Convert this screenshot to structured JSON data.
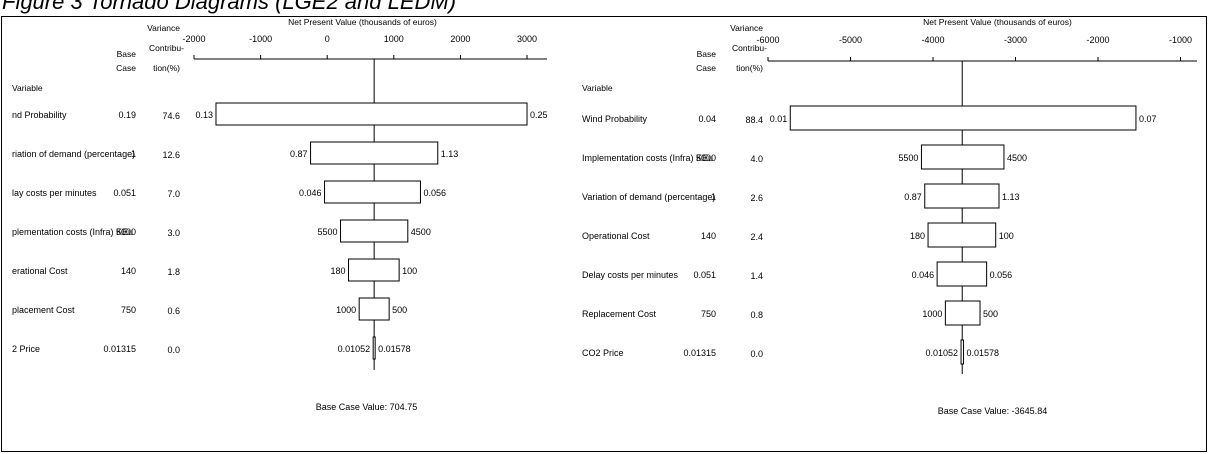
{
  "figure": {
    "title": "Figure 3 Tornado Diagrams (LGE2 and LEDM)"
  },
  "table_headers": {
    "variable": "Variable",
    "base_case_line1": "Base",
    "base_case_line2": "Case",
    "variance_line1": "Variance",
    "variance_line2": "Contribu-",
    "variance_line3": "tion(%)"
  },
  "chart_data": [
    {
      "type": "bar",
      "subtype": "tornado",
      "axis_title": "Net Present Value (thousands of euros)",
      "xlim": [
        -2000,
        3300
      ],
      "ticks": [
        -2000,
        -1000,
        0,
        1000,
        2000,
        3000
      ],
      "base_case_value": 704.75,
      "base_case_label": "Base Case Value: 704.75",
      "rows": [
        {
          "variable": "Wind Probability",
          "variable_visible": "nd Probability",
          "base_case": "0.19",
          "variance_contribution": "74.6",
          "low_npv": -1670,
          "high_npv": 3000,
          "low_label": "0.13",
          "high_label": "0.25"
        },
        {
          "variable": "Variation of demand (percentage)",
          "variable_visible": "riation of demand (percentage)",
          "base_case": "1",
          "variance_contribution": "12.6",
          "low_npv": -250,
          "high_npv": 1660,
          "low_label": "0.87",
          "high_label": "1.13"
        },
        {
          "variable": "Delay costs per minutes",
          "variable_visible": "lay costs per minutes",
          "base_case": "0.051",
          "variance_contribution": "7.0",
          "low_npv": -40,
          "high_npv": 1400,
          "low_label": "0.046",
          "high_label": "0.056"
        },
        {
          "variable": "Implementation costs (Infra) KEu",
          "variable_visible": "plementation costs  (Infra) KEu",
          "base_case": "5000",
          "variance_contribution": "3.0",
          "low_npv": 200,
          "high_npv": 1210,
          "low_label": "5500",
          "high_label": "4500"
        },
        {
          "variable": "Operational Cost",
          "variable_visible": "erational Cost",
          "base_case": "140",
          "variance_contribution": "1.8",
          "low_npv": 320,
          "high_npv": 1080,
          "low_label": "180",
          "high_label": "100"
        },
        {
          "variable": "Replacement Cost",
          "variable_visible": "placement Cost",
          "base_case": "750",
          "variance_contribution": "0.6",
          "low_npv": 480,
          "high_npv": 930,
          "low_label": "1000",
          "high_label": "500"
        },
        {
          "variable": "CO2 Price",
          "variable_visible": "2 Price",
          "base_case": "0.01315",
          "variance_contribution": "0.0",
          "low_npv": 690,
          "high_npv": 720,
          "low_label": "0.01052",
          "high_label": "0.01578"
        }
      ]
    },
    {
      "type": "bar",
      "subtype": "tornado",
      "axis_title": "Net Present Value (thousands of euros)",
      "xlim": [
        -6000,
        -800
      ],
      "ticks": [
        -6000,
        -5000,
        -4000,
        -3000,
        -2000,
        -1000
      ],
      "base_case_value": -3645.84,
      "base_case_label": "Base Case Value: -3645.84",
      "rows": [
        {
          "variable": "Wind Probability",
          "base_case": "0.04",
          "variance_contribution": "88.4",
          "low_npv": -5730,
          "high_npv": -1540,
          "low_label": "0.01",
          "high_label": "0.07"
        },
        {
          "variable": "Implementation costs  (Infra) KEu",
          "base_case": "5000",
          "variance_contribution": "4.0",
          "low_npv": -4140,
          "high_npv": -3140,
          "low_label": "5500",
          "high_label": "4500"
        },
        {
          "variable": "Variation of demand (percentage)",
          "base_case": "1",
          "variance_contribution": "2.6",
          "low_npv": -4100,
          "high_npv": -3200,
          "low_label": "0.87",
          "high_label": "1.13"
        },
        {
          "variable": "Operational Cost",
          "base_case": "140",
          "variance_contribution": "2.4",
          "low_npv": -4060,
          "high_npv": -3240,
          "low_label": "180",
          "high_label": "100"
        },
        {
          "variable": "Delay costs per minutes",
          "base_case": "0.051",
          "variance_contribution": "1.4",
          "low_npv": -3950,
          "high_npv": -3350,
          "low_label": "0.046",
          "high_label": "0.056"
        },
        {
          "variable": "Replacement Cost",
          "base_case": "750",
          "variance_contribution": "0.8",
          "low_npv": -3850,
          "high_npv": -3430,
          "low_label": "1000",
          "high_label": "500"
        },
        {
          "variable": "CO2 Price",
          "base_case": "0.01315",
          "variance_contribution": "0.0",
          "low_npv": -3660,
          "high_npv": -3630,
          "low_label": "0.01052",
          "high_label": "0.01578"
        }
      ]
    }
  ]
}
